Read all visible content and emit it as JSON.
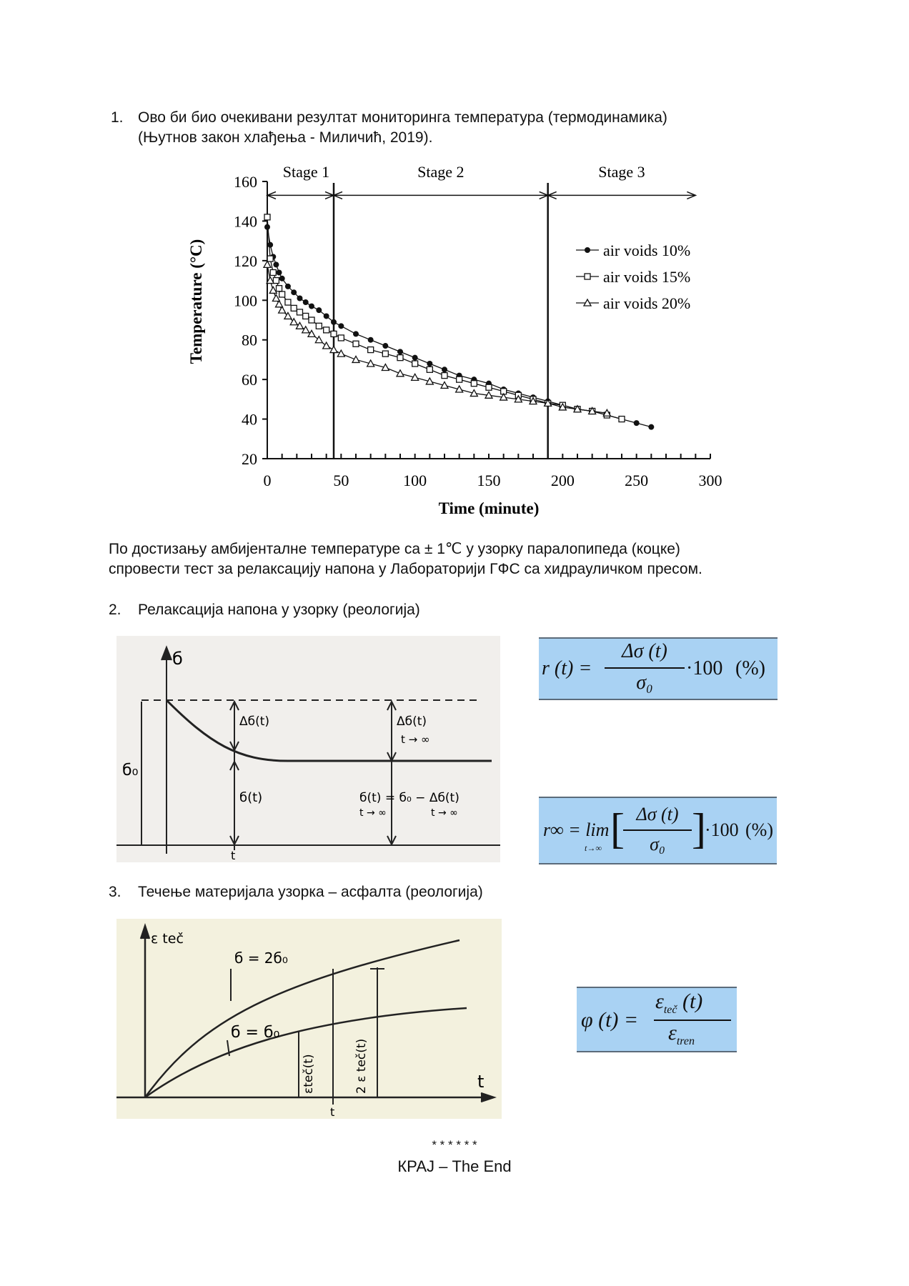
{
  "section1": {
    "number": "1.",
    "line1": "Ово би био очекивани резултат мониторинга температура  (термодинамика)",
    "line2": "(Њутнов закон хлађења - Миличић, 2019)."
  },
  "chart_data": {
    "type": "line",
    "title": "",
    "xlabel": "Time (minute)",
    "ylabel": "Temperature (°C)",
    "xlim": [
      0,
      300
    ],
    "ylim": [
      20,
      160
    ],
    "xticks": [
      0,
      50,
      100,
      150,
      200,
      250,
      300
    ],
    "yticks": [
      20,
      40,
      60,
      80,
      100,
      120,
      140,
      160
    ],
    "stages": [
      {
        "label": "Stage 1",
        "from": 0,
        "to": 45
      },
      {
        "label": "Stage 2",
        "from": 45,
        "to": 190
      },
      {
        "label": "Stage 3",
        "from": 190,
        "to": 290
      }
    ],
    "stage_boundaries": [
      45,
      190
    ],
    "legend_position": "right",
    "series": [
      {
        "name": "air voids 10%",
        "marker": "circle",
        "x": [
          0,
          2,
          4,
          6,
          8,
          10,
          14,
          18,
          22,
          26,
          30,
          35,
          40,
          45,
          50,
          60,
          70,
          80,
          90,
          100,
          110,
          120,
          130,
          140,
          150,
          160,
          170,
          180,
          190,
          200,
          210,
          220,
          230,
          240,
          250,
          260
        ],
        "y": [
          137,
          128,
          122,
          118,
          114,
          111,
          107,
          104,
          101,
          99,
          97,
          95,
          92,
          89,
          87,
          83,
          80,
          77,
          74,
          71,
          68,
          65,
          62,
          60,
          58,
          55,
          53,
          51,
          49,
          47,
          45,
          44,
          42,
          40,
          38,
          36
        ]
      },
      {
        "name": "air voids 15%",
        "marker": "square",
        "x": [
          0,
          2,
          4,
          6,
          8,
          10,
          14,
          18,
          22,
          26,
          30,
          35,
          40,
          45,
          50,
          60,
          70,
          80,
          90,
          100,
          110,
          120,
          130,
          140,
          150,
          160,
          170,
          180,
          190,
          200,
          210,
          220,
          230,
          240
        ],
        "y": [
          142,
          121,
          114,
          110,
          106,
          103,
          99,
          96,
          94,
          92,
          90,
          87,
          85,
          83,
          81,
          78,
          75,
          73,
          71,
          68,
          65,
          62,
          60,
          58,
          56,
          54,
          52,
          50,
          48,
          47,
          45,
          44,
          42,
          40
        ]
      },
      {
        "name": "air voids 20%",
        "marker": "triangle",
        "x": [
          0,
          2,
          4,
          6,
          8,
          10,
          14,
          18,
          22,
          26,
          30,
          35,
          40,
          45,
          50,
          60,
          70,
          80,
          90,
          100,
          110,
          120,
          130,
          140,
          150,
          160,
          170,
          180,
          190,
          200,
          210,
          220,
          230
        ],
        "y": [
          118,
          110,
          105,
          101,
          98,
          95,
          92,
          89,
          87,
          85,
          83,
          80,
          77,
          75,
          73,
          70,
          68,
          66,
          63,
          61,
          59,
          57,
          55,
          53,
          52,
          51,
          50,
          49,
          48,
          46,
          45,
          44,
          43
        ]
      }
    ]
  },
  "paragraph2": {
    "line1": "По достизању амбијенталне температуре са  ± 1℃ у узорку паралопипеда (коцке)",
    "line2": "спровести тест за релаксацију напона у Лабораторији ГФС са хидрауличком пресом."
  },
  "section2": {
    "number": "2.",
    "title": "Релаксација напона у узорку (реологија)",
    "diagram": {
      "sigma_axis": "б",
      "sigma0": "б₀",
      "delta_sigma_t": "Δб(t)",
      "delta_sigma_inf": "Δб(t)",
      "arrow_inf": "t → ∞",
      "sigma_t": "б(t)",
      "sigma_inf_eq": "б(t) = б₀ − Δб(t)",
      "sigma_inf_sub1": "t → ∞",
      "sigma_inf_sub2": "t → ∞",
      "t_label": "t"
    },
    "formula1": {
      "lhs": "r (t) =",
      "num": "Δσ (t)",
      "den": "σ₀",
      "mult": "·100",
      "unit": "(%)"
    },
    "formula2": {
      "lhs": "r∞ = lim",
      "sub": "t→∞",
      "num": "Δσ (t)",
      "den": "σ₀",
      "mult": "·100",
      "unit": "(%)"
    }
  },
  "section3": {
    "number": "3.",
    "title": "Течење материјала узорка – асфалта (реологија)",
    "diagram": {
      "y_axis": "ε teč",
      "curve_upper": "б = 2б₀",
      "curve_lower": "б = б₀",
      "eps_label": "εteč(t)",
      "eps2_label": "2 ε teč(t)",
      "t_axis": "t",
      "t_mark": "t"
    },
    "formula": {
      "lhs": "φ (t) =",
      "num": "ε",
      "num_sub": "teč",
      "num_arg": " (t)",
      "den": "ε",
      "den_sub": "tren"
    }
  },
  "footer": {
    "stars": "* * * * * *",
    "end": "КРАЈ – The End"
  }
}
